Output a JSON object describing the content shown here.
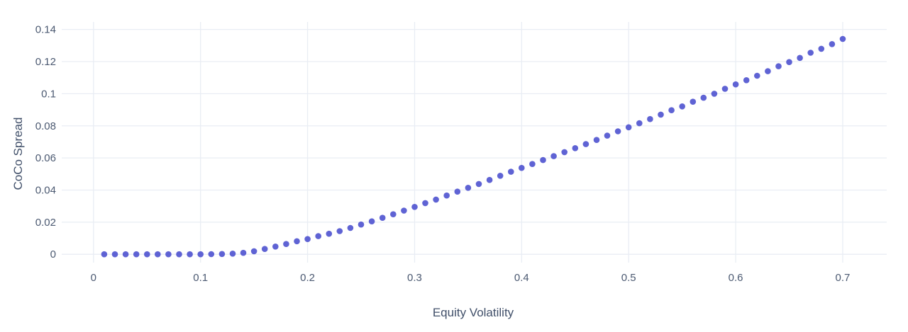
{
  "page": {
    "background_color": "#ffffff"
  },
  "chart_data": {
    "type": "scatter",
    "title": "",
    "xlabel": "Equity Volatility",
    "ylabel": "CoCo Spread",
    "legend": "none",
    "grid": true,
    "marker_color": "#5156d0",
    "grid_color": "#e9edf4",
    "tick_color": "#4b5971",
    "axis_title_color": "#404f69",
    "xlim": [
      -0.0297,
      0.7411
    ],
    "ylim": [
      -0.0052,
      0.1447
    ],
    "xticks": [
      0,
      0.1,
      0.2,
      0.3,
      0.4,
      0.5,
      0.6,
      0.7
    ],
    "yticks": [
      0,
      0.02,
      0.04,
      0.06,
      0.08,
      0.1,
      0.12,
      0.14
    ],
    "x": [
      0.01,
      0.02,
      0.03,
      0.04,
      0.05,
      0.06,
      0.07,
      0.08,
      0.09,
      0.1,
      0.11,
      0.12,
      0.13,
      0.14,
      0.15,
      0.16,
      0.17,
      0.18,
      0.19,
      0.2,
      0.21,
      0.22,
      0.23,
      0.24,
      0.25,
      0.26,
      0.27,
      0.28,
      0.29,
      0.3,
      0.31,
      0.32,
      0.33,
      0.34,
      0.35,
      0.36,
      0.37,
      0.38,
      0.39,
      0.4,
      0.41,
      0.42,
      0.43,
      0.44,
      0.45,
      0.46,
      0.47,
      0.48,
      0.49,
      0.5,
      0.51,
      0.52,
      0.53,
      0.54,
      0.55,
      0.56,
      0.57,
      0.58,
      0.59,
      0.6,
      0.61,
      0.62,
      0.63,
      0.64,
      0.65,
      0.66,
      0.67,
      0.68,
      0.69,
      0.7
    ],
    "y": [
      0.0,
      0.0,
      0.0,
      0.0,
      0.0,
      0.0,
      0.0,
      0.0,
      0.0,
      0.0,
      0.0001,
      0.0002,
      0.0004,
      0.0009,
      0.0019,
      0.0033,
      0.0048,
      0.0064,
      0.0081,
      0.0095,
      0.0113,
      0.0128,
      0.0144,
      0.0164,
      0.0185,
      0.0205,
      0.0227,
      0.0249,
      0.0272,
      0.0295,
      0.0319,
      0.0341,
      0.0366,
      0.039,
      0.0414,
      0.0438,
      0.0463,
      0.0489,
      0.0514,
      0.0538,
      0.0562,
      0.0587,
      0.0611,
      0.0636,
      0.0661,
      0.0686,
      0.0712,
      0.0739,
      0.0766,
      0.0791,
      0.0816,
      0.0842,
      0.087,
      0.0897,
      0.0921,
      0.095,
      0.0975,
      0.1,
      0.1031,
      0.1058,
      0.1084,
      0.1112,
      0.114,
      0.1171,
      0.1197,
      0.1223,
      0.1255,
      0.128,
      0.1309,
      0.1341
    ]
  }
}
